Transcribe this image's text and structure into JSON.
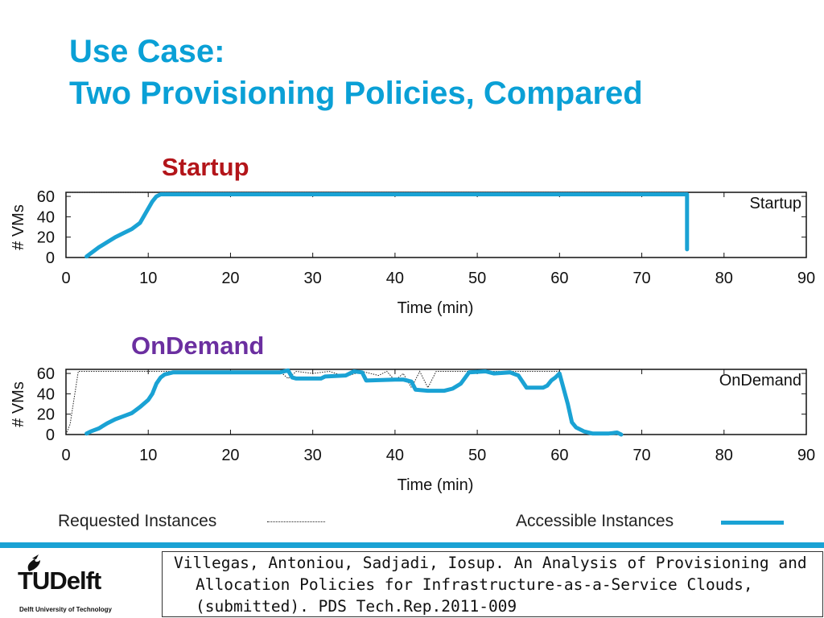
{
  "title": {
    "line1": "Use Case:",
    "line2": "Two Provisioning Policies, Compared"
  },
  "colors": {
    "title": "#0aa0d6",
    "startup_heading": "#b3151a",
    "ondemand_heading": "#6b2fa0",
    "accessible_line": "#1aa2d4",
    "requested_line": "#222222",
    "footer_bar": "#1aa2d4"
  },
  "chart_data": [
    {
      "type": "line",
      "heading": "Startup",
      "legend_label": "Startup",
      "xlabel": "Time (min)",
      "ylabel": "# VMs",
      "xlim": [
        0,
        90
      ],
      "ylim": [
        0,
        64
      ],
      "xticks": [
        0,
        10,
        20,
        30,
        40,
        50,
        60,
        70,
        80,
        90
      ],
      "yticks": [
        0,
        20,
        40,
        60
      ],
      "series": [
        {
          "name": "Requested Instances",
          "style": "dotted",
          "x": [
            0,
            10,
            11,
            75.5
          ],
          "y": [
            64,
            64,
            64,
            64
          ]
        },
        {
          "name": "Accessible Instances",
          "style": "thick",
          "x": [
            2.5,
            3,
            4,
            5,
            6,
            7,
            8,
            9,
            9.5,
            10,
            10.5,
            11,
            11.5,
            75.5,
            75.5,
            75.5
          ],
          "y": [
            1,
            4,
            10,
            15,
            20,
            24,
            28,
            34,
            41,
            48,
            55,
            60,
            62,
            62,
            62,
            8
          ]
        }
      ]
    },
    {
      "type": "line",
      "heading": "OnDemand",
      "legend_label": "OnDemand",
      "xlabel": "Time (min)",
      "ylabel": "# VMs",
      "xlim": [
        0,
        90
      ],
      "ylim": [
        0,
        64
      ],
      "xticks": [
        0,
        10,
        20,
        30,
        40,
        50,
        60,
        70,
        80,
        90
      ],
      "yticks": [
        0,
        20,
        40,
        60
      ],
      "series": [
        {
          "name": "Requested Instances",
          "style": "dotted",
          "x": [
            0,
            0.5,
            1.5,
            10,
            26,
            27,
            28,
            30,
            32,
            34,
            36,
            38,
            39,
            40,
            41,
            42,
            43,
            44,
            45,
            46,
            48,
            52,
            56,
            60
          ],
          "y": [
            0,
            10,
            62,
            62,
            62,
            55,
            62,
            60,
            62,
            57,
            62,
            58,
            62,
            53,
            60,
            46,
            62,
            46,
            62,
            62,
            62,
            62,
            62,
            62
          ]
        },
        {
          "name": "Accessible Instances",
          "style": "thick",
          "x": [
            2.5,
            3,
            4,
            5,
            6,
            7,
            8,
            9,
            10,
            10.5,
            11,
            11.5,
            12,
            13,
            26,
            27,
            27.5,
            28,
            31,
            31.5,
            34,
            35,
            36,
            36.5,
            40,
            41,
            42,
            42.5,
            44,
            46,
            47,
            48,
            49,
            51,
            52,
            54,
            55,
            56,
            57,
            58,
            58.5,
            59,
            59.5,
            60,
            61,
            61.5,
            62,
            63,
            64,
            65,
            66,
            67,
            67.5
          ],
          "y": [
            1,
            3,
            6,
            11,
            15,
            18,
            21,
            27,
            34,
            40,
            50,
            56,
            59,
            61,
            61,
            63,
            56,
            55,
            55,
            57,
            58,
            62,
            61,
            53,
            54,
            54,
            52,
            44,
            43,
            43,
            45,
            50,
            61,
            62,
            60,
            61,
            58,
            46,
            46,
            46,
            48,
            53,
            56,
            60,
            30,
            12,
            7,
            3,
            1,
            1,
            1,
            2,
            0
          ]
        }
      ]
    }
  ],
  "legend": {
    "requested": "Requested Instances",
    "accessible": "Accessible Instances"
  },
  "footer": {
    "logo_text": "TUDelft",
    "logo_subtitle": "Delft University of Technology",
    "logo_icon": "flame-icon",
    "citation": "Villegas, Antoniou, Sadjadi, Iosup. An Analysis of Provisioning and Allocation Policies for Infrastructure-as-a-Service Clouds, (submitted). PDS Tech.Rep.2011-009"
  }
}
